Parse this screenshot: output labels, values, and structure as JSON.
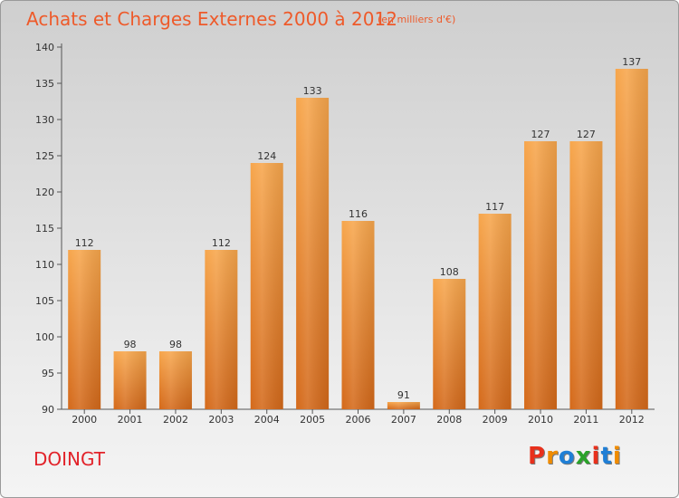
{
  "header": {
    "title": "Achats et Charges Externes 2000 à 2012",
    "subtitle": "(en milliers d'€)"
  },
  "footer": {
    "town": "DOINGT",
    "logo": [
      "P",
      "r",
      "o",
      "x",
      "i",
      "t",
      "i"
    ],
    "logo_colors": [
      "#e8301c",
      "#f08c00",
      "#1f7fd6",
      "#2aa22a",
      "#e8301c",
      "#1f7fd6",
      "#f08c00"
    ]
  },
  "colors": {
    "bar_top": "#f7a64c",
    "bar_bottom": "#d4691a",
    "title": "#ee5a2a",
    "town": "#e2232a"
  },
  "chart_data": {
    "type": "bar",
    "title": "Achats et Charges Externes 2000 à 2012",
    "subtitle": "(en milliers d'€)",
    "xlabel": "",
    "ylabel": "",
    "categories": [
      "2000",
      "2001",
      "2002",
      "2003",
      "2004",
      "2005",
      "2006",
      "2007",
      "2008",
      "2009",
      "2010",
      "2011",
      "2012"
    ],
    "values": [
      112,
      98,
      98,
      112,
      124,
      133,
      116,
      91,
      108,
      117,
      127,
      127,
      137
    ],
    "ylim": [
      90,
      140
    ],
    "yticks": [
      90,
      95,
      100,
      105,
      110,
      115,
      120,
      125,
      130,
      135,
      140
    ],
    "grid": false
  }
}
